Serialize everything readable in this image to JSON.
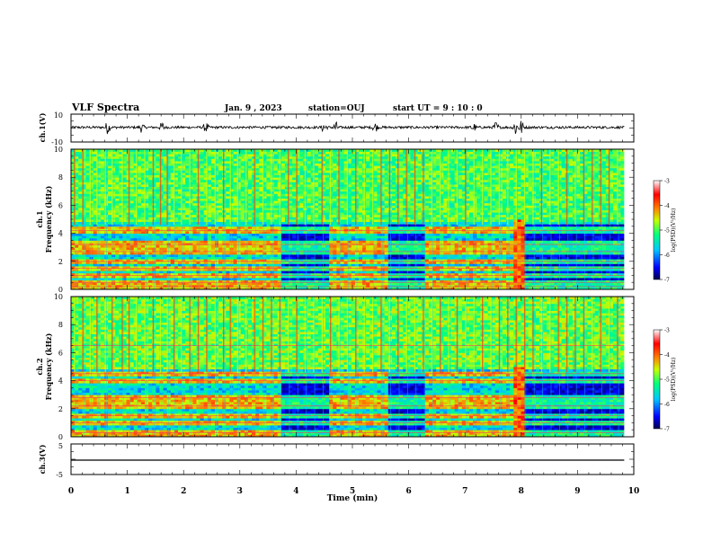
{
  "header": {
    "title": "VLF Spectra",
    "date": "Jan. 9 , 2023",
    "station": "station=OUJ",
    "start": "start UT =  9 : 10 : 0"
  },
  "chart_data": [
    {
      "type": "line",
      "id": "ch1-waveform",
      "ylabel": "ch.1(V)",
      "ylim": [
        -10,
        10
      ],
      "ytick_labels": [
        "10",
        "-10"
      ],
      "xlim": [
        0,
        10
      ],
      "trace_end_min": 9.83,
      "baseline": 0.5,
      "noise_amplitude": 0.9,
      "bursts": [
        {
          "t": 0.65,
          "amp": 4.5
        },
        {
          "t": 1.25,
          "amp": 3.2
        },
        {
          "t": 1.62,
          "amp": 4.0
        },
        {
          "t": 2.4,
          "amp": 3.5
        },
        {
          "t": 4.5,
          "amp": 5.0
        },
        {
          "t": 4.7,
          "amp": 4.5
        },
        {
          "t": 5.4,
          "amp": 3.8
        },
        {
          "t": 7.15,
          "amp": 3.5
        },
        {
          "t": 7.55,
          "amp": 4.0
        },
        {
          "t": 7.9,
          "amp": 6.5
        },
        {
          "t": 8.0,
          "amp": 5.5
        }
      ]
    },
    {
      "type": "heatmap",
      "id": "ch1-spectrogram",
      "ylabel": "ch.1\nFrequency (kHz)",
      "ylim": [
        0,
        10
      ],
      "xlim": [
        0,
        10
      ],
      "ytick_labels": [
        "0",
        "2",
        "4",
        "6",
        "8",
        "10"
      ],
      "data_end_min": 9.83,
      "colorbar": {
        "range": [
          -7,
          -3
        ],
        "ticks": [
          "-3",
          "-4",
          "-5",
          "-6",
          "-7"
        ],
        "label": "log(PSD)(V²/Hz)"
      },
      "background_level": -5.5,
      "upper_band_level": -5.0,
      "strong_bands_khz": [
        0.2,
        0.5,
        1.0,
        1.5,
        2.0,
        2.7,
        3.2,
        4.2
      ],
      "active_intervals_min": [
        [
          0.0,
          3.75
        ],
        [
          4.6,
          5.65
        ],
        [
          6.3,
          7.95
        ]
      ],
      "bright_intervals_min": [
        [
          7.85,
          8.05
        ]
      ],
      "sferic_times_min": [
        0.05,
        0.2,
        0.33,
        0.45,
        0.6,
        0.72,
        0.9,
        1.02,
        1.15,
        1.3,
        1.45,
        1.58,
        1.7,
        1.82,
        1.95,
        2.1,
        2.25,
        2.4,
        2.55,
        2.7,
        2.82,
        2.95,
        3.1,
        3.25,
        3.4,
        3.55,
        3.7,
        3.85,
        4.0,
        4.15,
        4.3,
        4.45,
        4.6,
        4.75,
        4.9,
        5.05,
        5.2,
        5.35,
        5.5,
        5.65,
        5.8,
        5.95,
        6.1,
        6.25,
        6.4,
        6.55,
        6.7,
        6.85,
        7.0,
        7.15,
        7.3,
        7.45,
        7.6,
        7.75,
        7.9,
        8.05,
        8.2,
        8.35,
        8.5,
        8.65,
        8.8,
        8.95,
        9.1,
        9.25,
        9.4,
        9.55,
        9.7
      ]
    },
    {
      "type": "heatmap",
      "id": "ch2-spectrogram",
      "ylabel": "ch.2\nFrequency (kHz)",
      "ylim": [
        0,
        10
      ],
      "xlim": [
        0,
        10
      ],
      "ytick_labels": [
        "0",
        "2",
        "4",
        "6",
        "8",
        "10"
      ],
      "data_end_min": 9.83,
      "colorbar": {
        "range": [
          -7,
          -3
        ],
        "ticks": [
          "-3",
          "-4",
          "-5",
          "-6",
          "-7"
        ],
        "label": "log(PSD)(V²/Hz)"
      },
      "background_level": -5.8,
      "upper_band_level": -4.9,
      "strong_bands_khz": [
        0.3,
        1.0,
        1.5,
        2.2,
        2.8,
        4.0,
        4.5,
        6.5
      ],
      "active_intervals_min": [
        [
          0.0,
          3.75
        ],
        [
          4.6,
          5.65
        ],
        [
          6.3,
          7.95
        ]
      ],
      "bright_intervals_min": [
        [
          7.85,
          8.05
        ]
      ],
      "sferic_times_min": [
        0.05,
        0.2,
        0.33,
        0.45,
        0.6,
        0.72,
        0.9,
        1.02,
        1.15,
        1.3,
        1.45,
        1.58,
        1.7,
        1.82,
        1.95,
        2.1,
        2.25,
        2.4,
        2.55,
        2.7,
        2.82,
        2.95,
        3.1,
        3.25,
        3.4,
        3.55,
        3.7,
        3.85,
        4.0,
        4.15,
        4.3,
        4.45,
        4.6,
        4.75,
        4.9,
        5.05,
        5.2,
        5.35,
        5.5,
        5.65,
        5.8,
        5.95,
        6.1,
        6.25,
        6.4,
        6.55,
        6.7,
        6.85,
        7.0,
        7.15,
        7.3,
        7.45,
        7.6,
        7.75,
        7.9,
        8.05,
        8.2,
        8.35,
        8.5,
        8.65,
        8.8,
        8.95,
        9.1,
        9.25,
        9.4,
        9.55,
        9.7
      ]
    },
    {
      "type": "line",
      "id": "ch3-waveform",
      "ylabel": "ch.3(V)",
      "ylim": [
        -5,
        5
      ],
      "ytick_labels": [
        "5",
        "-5"
      ],
      "xlim": [
        0,
        10
      ],
      "trace_end_min": 9.83,
      "constant_value": -0.3
    }
  ],
  "xaxis": {
    "label": "Time (min)",
    "ticks": [
      "0",
      "1",
      "2",
      "3",
      "4",
      "5",
      "6",
      "7",
      "8",
      "9",
      "10"
    ]
  }
}
